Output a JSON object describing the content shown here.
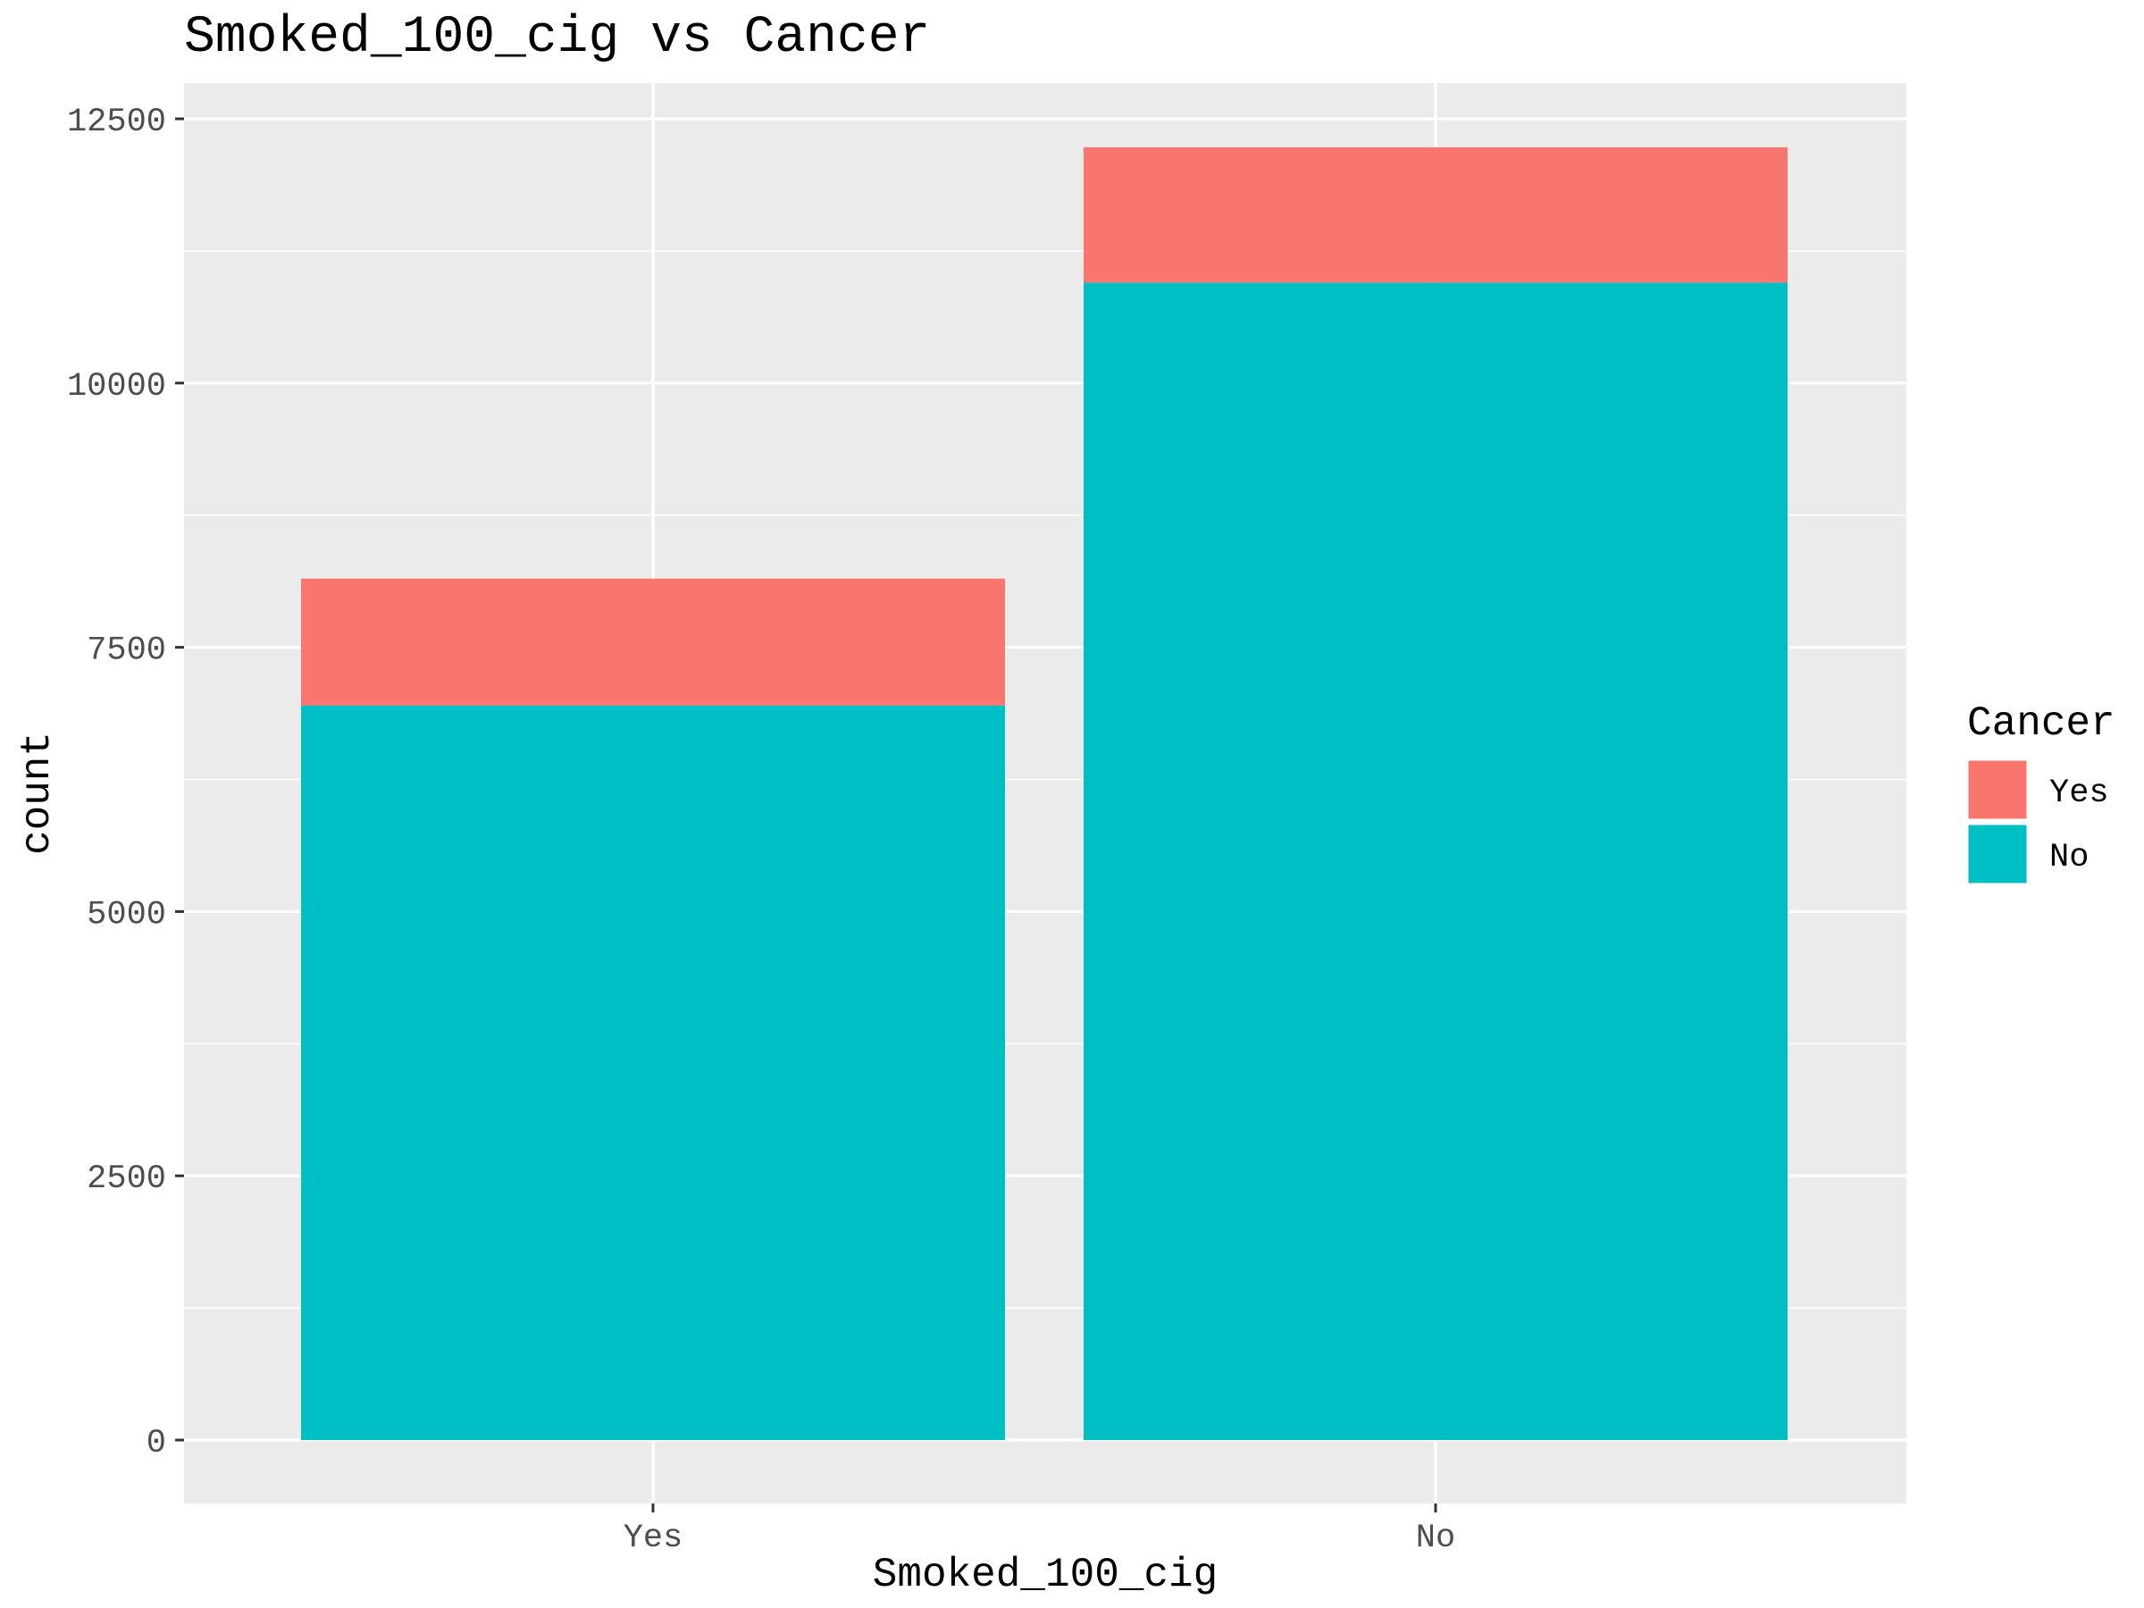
{
  "chart_data": {
    "type": "bar",
    "stacked": true,
    "title": "Smoked_100_cig vs Cancer",
    "xlabel": "Smoked_100_cig",
    "ylabel": "count",
    "categories": [
      "Yes",
      "No"
    ],
    "series": [
      {
        "name": "Yes",
        "color": "#F8766D",
        "values": [
          1200,
          1280
        ]
      },
      {
        "name": "No",
        "color": "#00BFC4",
        "values": [
          6950,
          10950
        ]
      }
    ],
    "ylim": [
      0,
      13100
    ],
    "yticks": [
      0,
      2500,
      5000,
      7500,
      10000,
      12500
    ],
    "grid": true,
    "background": "#EBEBEB",
    "legend": {
      "title": "Cancer",
      "position": "right",
      "order": [
        "Yes",
        "No"
      ]
    }
  }
}
